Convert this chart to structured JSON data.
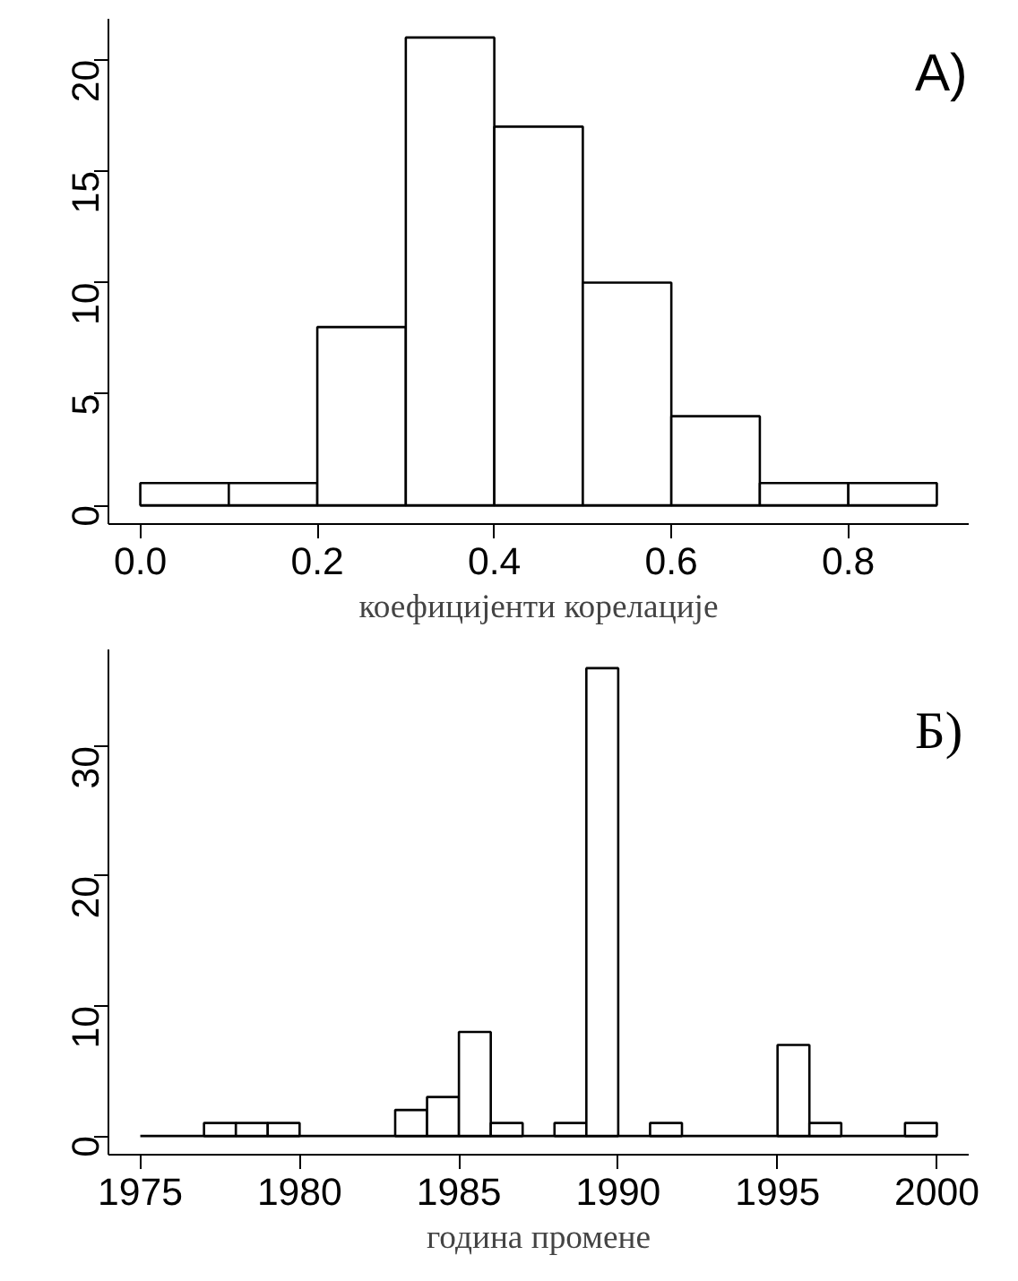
{
  "chart_data": [
    {
      "type": "histogram",
      "xlabel": "коефицијенти корелације",
      "annotations": [
        "А)"
      ],
      "bins": [
        0,
        0.1,
        0.2,
        0.3,
        0.4,
        0.5,
        0.6,
        0.7,
        0.8,
        0.9
      ],
      "values": [
        1,
        1,
        8,
        21,
        17,
        10,
        4,
        1,
        1
      ],
      "color": "#ffffff",
      "xlim": [
        -0.036,
        0.936
      ],
      "xticks": [
        {
          "value": 0,
          "label": "0.0"
        },
        0.2,
        0.4,
        0.6,
        0.8
      ],
      "ylim": [
        -0.84,
        21.84
      ],
      "yticks": [
        0,
        5,
        10,
        15,
        20
      ]
    },
    {
      "type": "histogram",
      "xlabel": "година промене",
      "annotations": [
        "Б)"
      ],
      "bins": [
        1975,
        1976,
        1977,
        1978,
        1979,
        1980,
        1981,
        1982,
        1983,
        1984,
        1985,
        1986,
        1987,
        1988,
        1989,
        1990,
        1991,
        1992,
        1993,
        1994,
        1995,
        1996,
        1997,
        1998,
        1999,
        2000
      ],
      "values": [
        0,
        0,
        1,
        1,
        1,
        0,
        0,
        0,
        2,
        3,
        8,
        1,
        0,
        1,
        36,
        0,
        1,
        0,
        0,
        0,
        7,
        1,
        0,
        0,
        1
      ],
      "color": "#ffffff",
      "xlim": [
        1974,
        2001
      ],
      "xticks": [
        1975,
        1980,
        1985,
        1990,
        1995,
        2000
      ],
      "ylim": [
        -1.44,
        37.44
      ],
      "yticks": [
        0,
        10,
        20,
        30
      ]
    }
  ]
}
